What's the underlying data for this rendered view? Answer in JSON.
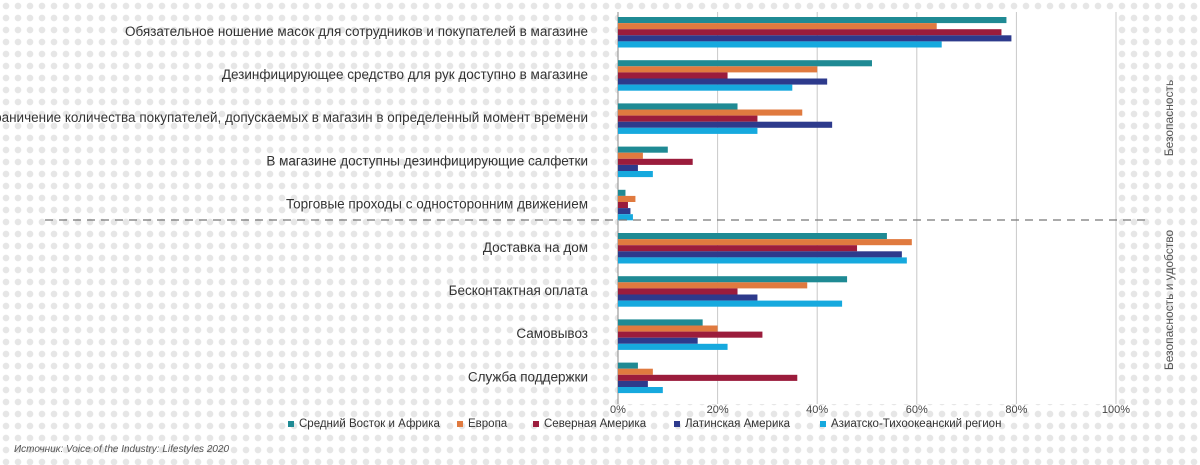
{
  "chart_data": {
    "type": "bar",
    "orientation": "horizontal",
    "categories": [
      "Обязательное ношение масок для сотрудников и покупателей в магазине",
      "Дезинфицирующее средство для рук доступно в магазине",
      "Ограничение количества покупателей, допускаемых в магазин в определенный момент времени",
      "В магазине доступны дезинфицирующие салфетки",
      "Торговые проходы с односторонним движением",
      "Доставка на дом",
      "Бесконтактная оплата",
      "Самовывоз",
      "Служба поддержки"
    ],
    "series": [
      {
        "name": "Средний Восток и Африка",
        "color": "#1f8a94",
        "values": [
          78,
          51,
          24,
          10,
          1.5,
          54,
          46,
          17,
          4
        ]
      },
      {
        "name": "Европа",
        "color": "#e07a3f",
        "values": [
          64,
          40,
          37,
          5,
          3.5,
          59,
          38,
          20,
          7
        ]
      },
      {
        "name": "Северная Америка",
        "color": "#9b1c3c",
        "values": [
          77,
          22,
          28,
          15,
          2,
          48,
          24,
          29,
          36
        ]
      },
      {
        "name": "Латинская Америка",
        "color": "#2d3a8c",
        "values": [
          79,
          42,
          43,
          4,
          2.5,
          57,
          28,
          16,
          6
        ]
      },
      {
        "name": "Азиатско-Тихоокеанский регион",
        "color": "#16a9de",
        "values": [
          65,
          35,
          28,
          7,
          3,
          58,
          45,
          22,
          9
        ]
      }
    ],
    "xlim": [
      0,
      100
    ],
    "xticks": [
      "0%",
      "20%",
      "40%",
      "60%",
      "80%",
      "100%"
    ],
    "grid": true,
    "legend_position": "bottom",
    "groups": [
      {
        "label": "Безопасность",
        "categories": [
          0,
          1,
          2,
          3,
          4
        ]
      },
      {
        "label": "Безопасность и удобство",
        "categories": [
          5,
          6,
          7,
          8
        ]
      }
    ]
  },
  "source": "Источник: Voice of the Industry: Lifestyles 2020"
}
